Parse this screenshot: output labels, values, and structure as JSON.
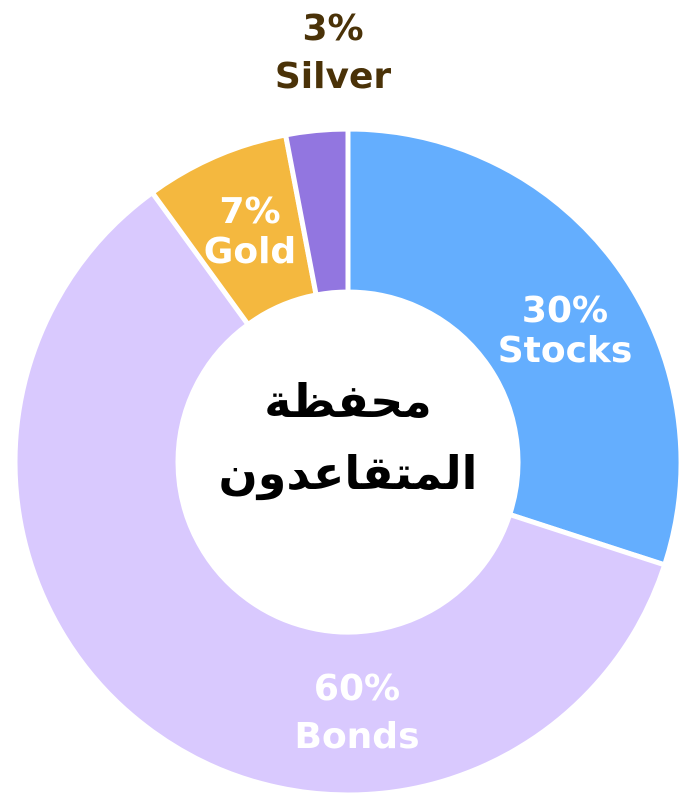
{
  "chart_data": {
    "type": "donut",
    "title": "محفظة المتقاعدون",
    "categories": [
      "Stocks",
      "Bonds",
      "Gold",
      "Silver"
    ],
    "values": [
      30,
      60,
      7,
      3
    ],
    "value_labels": [
      "30%",
      "60%",
      "7%",
      "3%"
    ],
    "colors": [
      "#64aefe",
      "#d9c9fe",
      "#f4b83f",
      "#9276e0"
    ]
  }
}
